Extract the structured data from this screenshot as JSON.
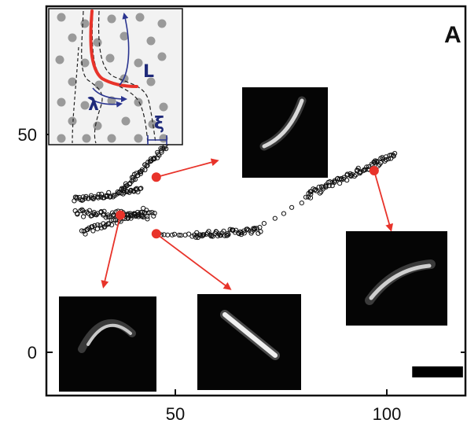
{
  "panel_label": "A",
  "colors": {
    "frame": "#111111",
    "marker": "#e8332a",
    "trajectory": "#111111",
    "inset_bg": "#f2f2f2",
    "inset_posts": "#9a9a9a",
    "inset_arrows": "#2b3590",
    "thumb_bg": "#050505",
    "scale_bar": "#000000"
  },
  "inset": {
    "labels": {
      "contour": "L",
      "wavelength": "λ",
      "tube_width": "ξ"
    },
    "icons": [
      "post-array",
      "tube-contour",
      "filament-path"
    ]
  },
  "chart_data": {
    "type": "scatter",
    "title": "",
    "xlabel": "",
    "ylabel": "",
    "xlim": [
      23,
      120
    ],
    "ylim": [
      -10,
      69
    ],
    "xticks": [
      50,
      100
    ],
    "yticks": [
      0,
      50
    ],
    "xtick_labels": [
      "50",
      "100"
    ],
    "ytick_labels": [
      "0",
      "50"
    ],
    "grid": false,
    "legend": "none",
    "segments": [
      {
        "x0": 26.0,
        "y0": 35.0,
        "x1": 42.0,
        "y1": 37.2,
        "n": 55,
        "spread": 0.6
      },
      {
        "x0": 26.5,
        "y0": 32.0,
        "x1": 45.0,
        "y1": 31.3,
        "n": 60,
        "spread": 0.8
      },
      {
        "x0": 28.0,
        "y0": 27.5,
        "x1": 43.0,
        "y1": 32.5,
        "n": 45,
        "spread": 0.7
      },
      {
        "x0": 37.0,
        "y0": 37.0,
        "x1": 48.0,
        "y1": 47.5,
        "n": 50,
        "spread": 0.6
      },
      {
        "x0": 46.0,
        "y0": 27.0,
        "x1": 56.0,
        "y1": 26.8,
        "n": 14,
        "spread": 0.3
      },
      {
        "x0": 55.0,
        "y0": 27.0,
        "x1": 70.0,
        "y1": 28.0,
        "n": 55,
        "spread": 0.7
      },
      {
        "x0": 69.0,
        "y0": 28.5,
        "x1": 82.0,
        "y1": 35.5,
        "n": 7,
        "spread": 0.3
      },
      {
        "x0": 81.0,
        "y0": 36.0,
        "x1": 102.0,
        "y1": 45.5,
        "n": 80,
        "spread": 0.8
      }
    ],
    "highlighted_points": [
      {
        "x": 45.5,
        "y": 40.2
      },
      {
        "x": 37.0,
        "y": 31.5
      },
      {
        "x": 45.5,
        "y": 27.2
      },
      {
        "x": 97.0,
        "y": 41.7
      }
    ],
    "annotation_arrows": [
      {
        "from": [
          45.5,
          40.2
        ],
        "to": [
          60.0,
          44.0
        ]
      },
      {
        "from": [
          37.0,
          31.5
        ],
        "to": [
          33.0,
          15.0
        ]
      },
      {
        "from": [
          45.5,
          27.2
        ],
        "to": [
          63.0,
          14.5
        ]
      },
      {
        "from": [
          97.0,
          41.7
        ],
        "to": [
          101.0,
          28.0
        ]
      }
    ],
    "scale_bar": {
      "x0": 106.0,
      "x1": 118.0,
      "y": -4.5
    }
  }
}
